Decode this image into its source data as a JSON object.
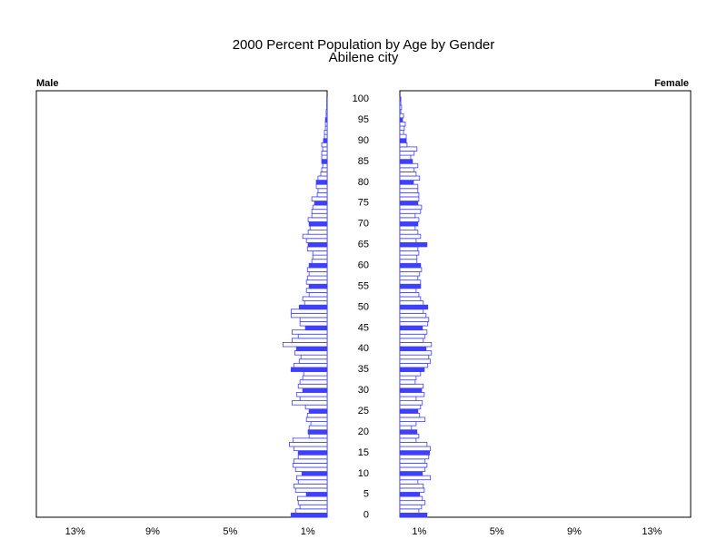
{
  "chart_data": {
    "type": "pyramid",
    "title": "2000 Percent Population by Age by Gender",
    "subtitle": "Abilene city",
    "categories": [
      0,
      1,
      2,
      3,
      4,
      5,
      6,
      7,
      8,
      9,
      10,
      11,
      12,
      13,
      14,
      15,
      16,
      17,
      18,
      19,
      20,
      21,
      22,
      23,
      24,
      25,
      26,
      27,
      28,
      29,
      30,
      31,
      32,
      33,
      34,
      35,
      36,
      37,
      38,
      39,
      40,
      41,
      42,
      43,
      44,
      45,
      46,
      47,
      48,
      49,
      50,
      51,
      52,
      53,
      54,
      55,
      56,
      57,
      58,
      59,
      60,
      61,
      62,
      63,
      64,
      65,
      66,
      67,
      68,
      69,
      70,
      71,
      72,
      73,
      74,
      75,
      76,
      77,
      78,
      79,
      80,
      81,
      82,
      83,
      84,
      85,
      86,
      87,
      88,
      89,
      90,
      91,
      92,
      93,
      94,
      95,
      96,
      97,
      98,
      99,
      100
    ],
    "ylim": [
      -0.5,
      102
    ],
    "yticks": [
      0,
      5,
      10,
      15,
      20,
      25,
      30,
      35,
      40,
      45,
      50,
      55,
      60,
      65,
      70,
      75,
      80,
      85,
      90,
      95,
      100
    ],
    "xlim": [
      0,
      15
    ],
    "xticks": [
      {
        "value": 1,
        "label": "1%"
      },
      {
        "value": 5,
        "label": "5%"
      },
      {
        "value": 9,
        "label": "9%"
      },
      {
        "value": 13,
        "label": "13%"
      }
    ],
    "filled_every": 5,
    "series": [
      {
        "name": "Male",
        "color": "#3f3fff",
        "values": [
          1.86,
          1.63,
          1.4,
          1.49,
          1.53,
          1.07,
          1.63,
          1.72,
          1.49,
          1.58,
          1.3,
          1.63,
          1.77,
          1.72,
          1.49,
          1.49,
          1.72,
          1.95,
          1.77,
          0.93,
          0.98,
          0.93,
          0.84,
          1.07,
          1.02,
          0.93,
          1.12,
          1.81,
          1.4,
          1.58,
          1.26,
          1.49,
          1.4,
          1.26,
          1.21,
          1.86,
          1.72,
          1.44,
          1.35,
          1.67,
          1.58,
          2.28,
          1.81,
          1.49,
          1.81,
          1.12,
          1.4,
          1.4,
          1.86,
          1.86,
          1.44,
          1.16,
          1.26,
          0.93,
          1.07,
          0.93,
          1.07,
          1.02,
          0.93,
          1.02,
          0.93,
          0.79,
          0.74,
          0.74,
          1.02,
          0.98,
          1.07,
          1.26,
          0.98,
          0.88,
          0.93,
          0.98,
          0.79,
          0.79,
          0.74,
          0.65,
          0.79,
          0.51,
          0.47,
          0.56,
          0.56,
          0.47,
          0.33,
          0.28,
          0.23,
          0.28,
          0.28,
          0.28,
          0.23,
          0.28,
          0.19,
          0.14,
          0.14,
          0.09,
          0.09,
          0.09,
          0.05,
          0.05,
          0.02,
          0.02,
          0.02
        ]
      },
      {
        "name": "Female",
        "color": "#3f3fff",
        "values": [
          1.4,
          0.98,
          1.12,
          1.3,
          1.16,
          1.02,
          1.26,
          1.21,
          0.93,
          1.58,
          1.16,
          1.3,
          1.4,
          1.3,
          1.49,
          1.53,
          1.58,
          1.4,
          0.84,
          0.98,
          0.88,
          0.6,
          0.84,
          1.3,
          1.02,
          0.93,
          1.07,
          1.16,
          0.84,
          1.26,
          1.12,
          1.21,
          0.79,
          0.84,
          1.07,
          1.26,
          1.44,
          1.58,
          1.49,
          1.63,
          1.35,
          1.63,
          1.21,
          1.3,
          1.4,
          1.16,
          1.44,
          1.49,
          1.35,
          1.21,
          1.44,
          1.21,
          1.07,
          0.98,
          0.84,
          1.07,
          1.07,
          0.93,
          1.02,
          1.12,
          1.07,
          0.88,
          0.88,
          0.98,
          0.93,
          1.4,
          0.84,
          1.07,
          0.93,
          0.79,
          0.93,
          0.98,
          0.79,
          1.07,
          1.12,
          0.93,
          0.98,
          0.98,
          0.93,
          0.93,
          0.7,
          1.02,
          0.84,
          0.74,
          0.93,
          0.65,
          0.56,
          0.74,
          0.88,
          0.37,
          0.33,
          0.33,
          0.19,
          0.23,
          0.28,
          0.14,
          0.19,
          0.05,
          0.09,
          0.05,
          0.05
        ]
      }
    ]
  }
}
